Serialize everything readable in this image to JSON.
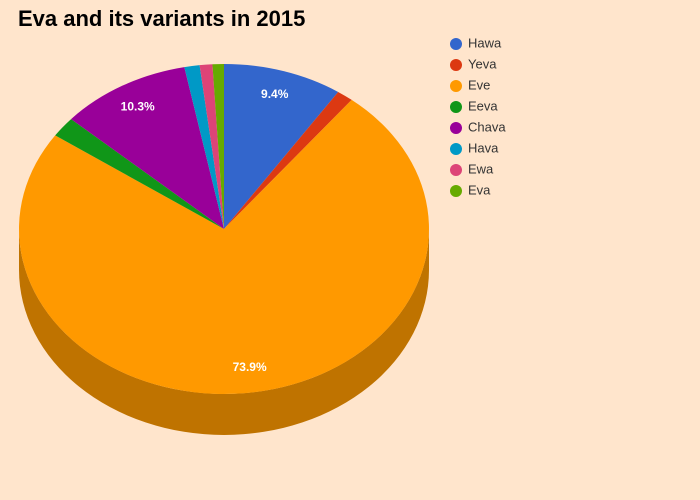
{
  "chart_data": {
    "type": "pie",
    "title": "Eva and its variants in 2015",
    "is3D": true,
    "legend": "right",
    "categories": [
      "Hawa",
      "Yeva",
      "Eve",
      "Eeva",
      "Chava",
      "Hava",
      "Ewa",
      "Eva"
    ],
    "values": [
      9.4,
      1.3,
      73.9,
      2.0,
      10.3,
      1.2,
      1.0,
      0.9
    ],
    "value_labels": [
      "9.4%",
      null,
      "73.9%",
      null,
      "10.3%",
      null,
      null,
      null
    ],
    "colors": [
      "#3366cc",
      "#dc3912",
      "#ff9900",
      "#109618",
      "#990099",
      "#0099c6",
      "#dd4477",
      "#66aa00"
    ]
  }
}
